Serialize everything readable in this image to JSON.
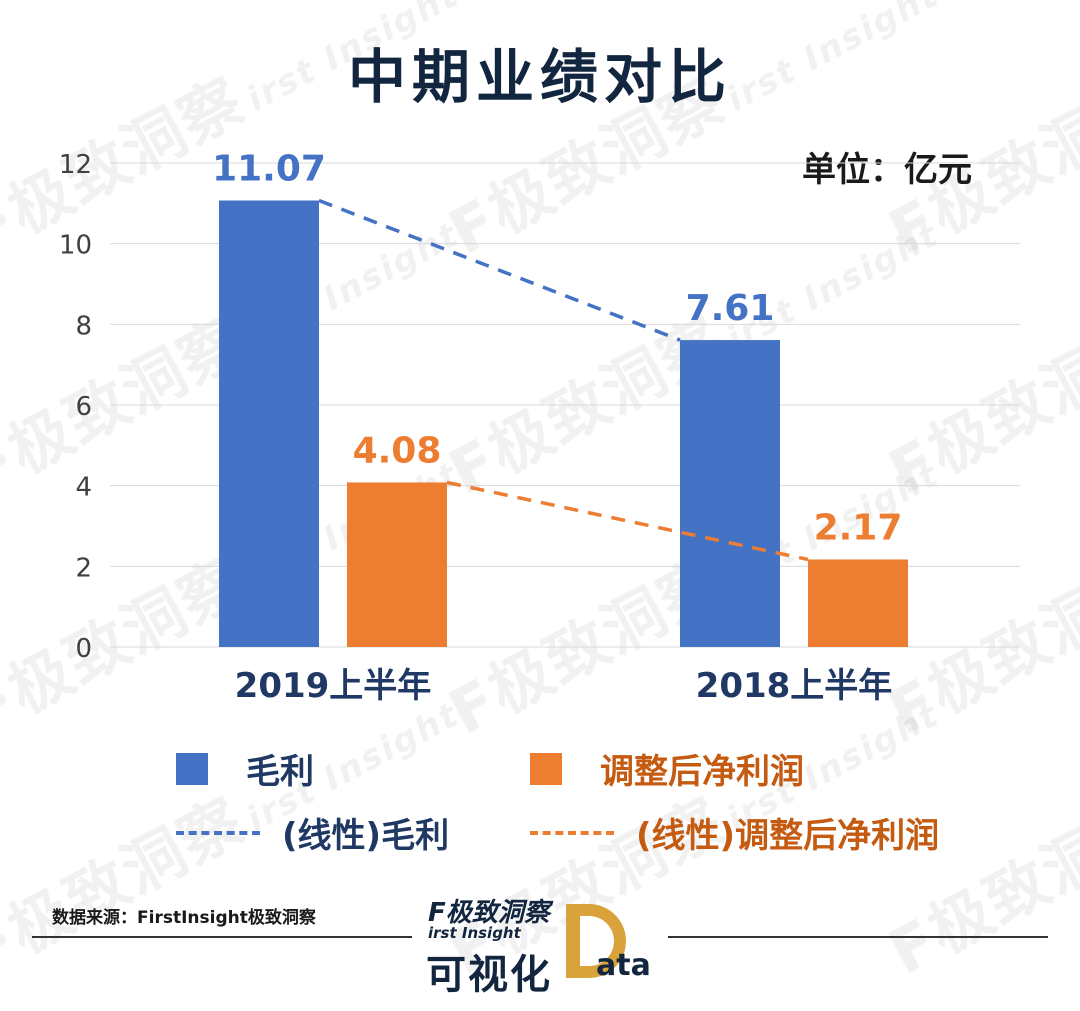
{
  "title": "中期业绩对比",
  "unit_label": "单位：亿元",
  "watermark_text": "F极致洞察",
  "watermark_sub": "irst Insight",
  "source": "数据来源：FirstInsight极致洞察",
  "brand": {
    "top": "F极致洞察",
    "sub": "irst Insight",
    "main": "可视化",
    "ata": "ata"
  },
  "colors": {
    "blue": "#4472c4",
    "orange": "#ed7d31",
    "axis_text": "#404040",
    "category_text": "#1f3864"
  },
  "legend": {
    "bar1": "毛利",
    "bar2": "调整后净利润",
    "line1": "(线性)毛利",
    "line2": "(线性)调整后净利润"
  },
  "chart_data": {
    "type": "bar",
    "categories": [
      "2019上半年",
      "2018上半年"
    ],
    "series": [
      {
        "name": "毛利",
        "values": [
          11.07,
          7.61
        ],
        "color": "#4472c4",
        "labels": [
          "11.07",
          "7.61"
        ]
      },
      {
        "name": "调整后净利润",
        "values": [
          4.08,
          2.17
        ],
        "color": "#ed7d31",
        "labels": [
          "4.08",
          "2.17"
        ]
      }
    ],
    "trendlines": [
      {
        "name": "(线性)毛利",
        "series": "毛利",
        "style": "dashed",
        "color": "#4472c4"
      },
      {
        "name": "(线性)调整后净利润",
        "series": "调整后净利润",
        "style": "dashed",
        "color": "#ed7d31"
      }
    ],
    "ylim": [
      0,
      12
    ],
    "yticks": [
      "0",
      "2",
      "4",
      "6",
      "8",
      "10",
      "12"
    ],
    "grid": true,
    "legend_position": "bottom"
  }
}
